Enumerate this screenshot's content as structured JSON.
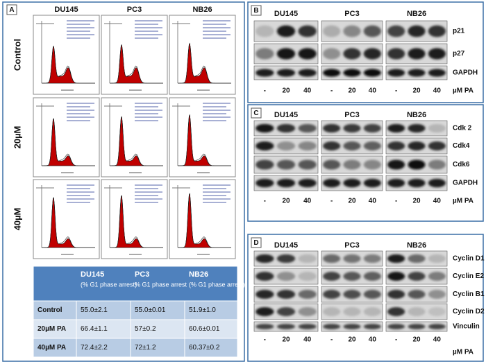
{
  "panel_a": {
    "label": "A",
    "columns": [
      "DU145",
      "PC3",
      "NB26"
    ],
    "rows": [
      "Control",
      "20µM",
      "40µM"
    ],
    "table": {
      "header": [
        {
          "name": "DU145",
          "sub": "(% G1 phase arrest)"
        },
        {
          "name": "PC3",
          "sub": "% G1 phase arrest"
        },
        {
          "name": "NB26",
          "sub": "(% G1 phase arrest)"
        }
      ],
      "rows": [
        [
          "Control",
          "55.0±2.1",
          "55.0±0.01",
          "51.9±1.0"
        ],
        [
          "20µM PA",
          "66.4±1.1",
          "57±0.2",
          "60.6±0.01"
        ],
        [
          "40µM PA",
          "72.4±2.2",
          "72±1.2",
          "60.37±0.2"
        ]
      ]
    }
  },
  "blots": [
    {
      "label": "B",
      "cell_lines": [
        "DU145",
        "PC3",
        "NB26"
      ],
      "proteins": [
        "p21",
        "p27",
        "GAPDH"
      ],
      "lanes": [
        "-",
        "20",
        "40"
      ],
      "unit": "µM PA"
    },
    {
      "label": "C",
      "cell_lines": [
        "DU145",
        "PC3",
        "NB26"
      ],
      "proteins": [
        "Cdk 2",
        "Cdk4",
        "Cdk6",
        "GAPDH"
      ],
      "lanes": [
        "-",
        "20",
        "40"
      ],
      "unit": "µM PA"
    },
    {
      "label": "D",
      "cell_lines": [
        "DU145",
        "PC3",
        "NB26"
      ],
      "proteins": [
        "Cyclin D1",
        "Cyclin E2",
        "Cyclin B1",
        "Cyclin D2",
        "Vinculin"
      ],
      "lanes": [
        "-",
        "20",
        "40"
      ],
      "unit": "µM PA"
    }
  ]
}
